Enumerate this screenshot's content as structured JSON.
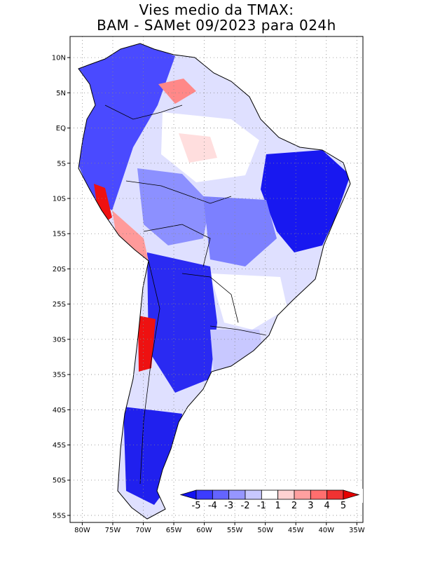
{
  "title": {
    "line1": "Vies medio da TMAX:",
    "line2": "BAM - SAMet 09/2023  para 024h"
  },
  "map": {
    "lat_ticks": [
      "10N",
      "5N",
      "EQ",
      "5S",
      "10S",
      "15S",
      "20S",
      "25S",
      "30S",
      "35S",
      "40S",
      "45S",
      "50S",
      "55S"
    ],
    "lon_ticks": [
      "80W",
      "75W",
      "70W",
      "65W",
      "60W",
      "55W",
      "50W",
      "45W",
      "40W",
      "35W"
    ],
    "lon_range": [
      -82,
      -34
    ],
    "lat_range": [
      -56,
      13
    ]
  },
  "colorbar": {
    "labels": [
      "-5",
      "-4",
      "-3",
      "-2",
      "-1",
      "1",
      "2",
      "3",
      "4",
      "5"
    ],
    "colors": [
      "#1414f0",
      "#3c3cff",
      "#6464ff",
      "#9696ff",
      "#c8c8ff",
      "#ffffff",
      "#ffd2d2",
      "#ffa0a0",
      "#ff6e6e",
      "#f03232",
      "#e60000"
    ]
  },
  "palette": {
    "strong_blue": "#1a1aee",
    "mid_blue": "#5a5aff",
    "light_blue": "#aab0ff",
    "pale_blue": "#dcdcff",
    "pink": "#ffd6d6",
    "red": "#ff2222"
  }
}
